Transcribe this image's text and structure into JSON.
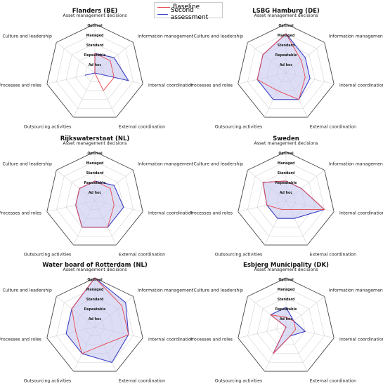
{
  "chart_data": {
    "type": "radar",
    "axes": [
      "Asset management decisions",
      "Information management",
      "Internal coordination",
      "External coordination",
      "Outsourcing activities",
      "Processes and roles",
      "Culture and leadership"
    ],
    "levels": [
      "Ad hoc",
      "Repeatable",
      "Standard",
      "Managed",
      "Optimal"
    ],
    "rlim": [
      0,
      5
    ],
    "legend": {
      "position": "top-center",
      "entries": [
        "Baseline",
        "Second assessment"
      ]
    },
    "colors": {
      "Baseline": "#e8474f",
      "Second assessment": "#3a3fc4",
      "fill": "#c6c8ee"
    },
    "panels": [
      {
        "title": "Flanders (BE)",
        "series": [
          {
            "name": "Baseline",
            "values": [
              2,
              2,
              2,
              2,
              0,
              0,
              0
            ]
          },
          {
            "name": "Second assessment",
            "values": [
              2,
              2.5,
              3.5,
              0,
              0,
              1,
              0
            ]
          }
        ]
      },
      {
        "title": "LSBG Hamburg (DE)",
        "series": [
          {
            "name": "Baseline",
            "values": [
              4,
              2,
              2,
              3,
              2,
              3,
              3
            ]
          },
          {
            "name": "Second assessment",
            "values": [
              4,
              2.5,
              2.5,
              3,
              3,
              3,
              3
            ]
          }
        ]
      },
      {
        "title": "Rijkswaterstaat (NL)",
        "series": [
          {
            "name": "Baseline",
            "values": [
              2,
              2,
              2,
              3,
              3,
              2,
              2
            ]
          },
          {
            "name": "Second assessment",
            "values": [
              2,
              2.5,
              3,
              3,
              3,
              2,
              2
            ]
          }
        ]
      },
      {
        "title": "Sweden",
        "series": [
          {
            "name": "Baseline",
            "values": [
              2,
              2,
              4,
              1,
              1,
              2,
              3
            ]
          },
          {
            "name": "Second assessment",
            "values": [
              2,
              2,
              4,
              2,
              2,
              2,
              3
            ]
          }
        ]
      },
      {
        "title": "Water board of Rotterdam (NL)",
        "series": [
          {
            "name": "Baseline",
            "values": [
              5,
              3.5,
              3.5,
              2,
              3,
              2,
              3
            ]
          },
          {
            "name": "Second assessment",
            "values": [
              5,
              4,
              3.5,
              4,
              3,
              3,
              3
            ]
          }
        ]
      },
      {
        "title": "Esbjerg Municipality (DK)",
        "series": [
          {
            "name": "Baseline",
            "values": [
              1,
              1,
              1,
              1,
              3,
              0,
              2
            ]
          },
          {
            "name": "Second assessment",
            "values": [
              2,
              1,
              2,
              1,
              3,
              0,
              2
            ]
          }
        ]
      }
    ]
  }
}
